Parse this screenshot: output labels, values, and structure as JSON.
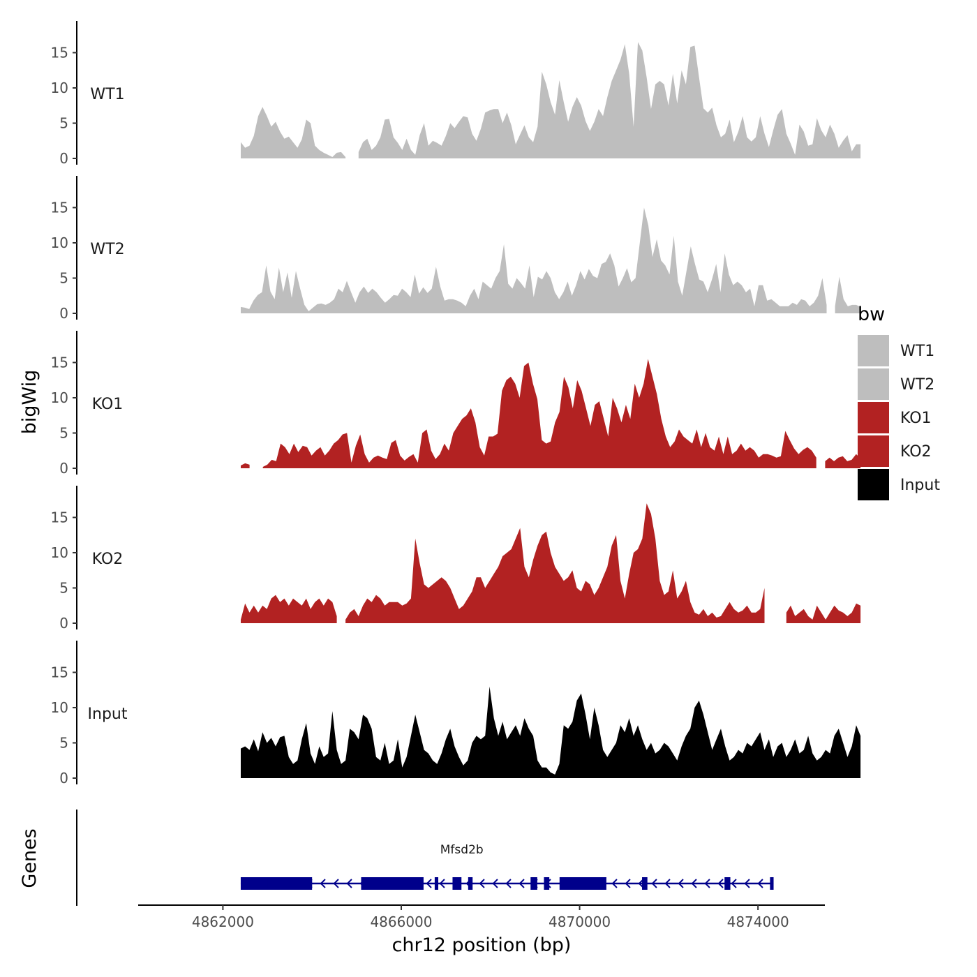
{
  "chart_data": {
    "type": "area",
    "region": {
      "chrom": "chr12",
      "start": 4862400,
      "end": 4876300
    },
    "ylabel": "bigWig",
    "genes_label": "Genes",
    "xlabel": "chr12 position (bp)",
    "x_ticks": [
      {
        "value": 4862000,
        "label": "4862000"
      },
      {
        "value": 4866000,
        "label": "4866000"
      },
      {
        "value": 4870000,
        "label": "4870000"
      },
      {
        "value": 4874000,
        "label": "4874000"
      }
    ],
    "y_ticks": [
      {
        "value": 0,
        "label": "0"
      },
      {
        "value": 5,
        "label": "5"
      },
      {
        "value": 10,
        "label": "10"
      },
      {
        "value": 15,
        "label": "15"
      }
    ],
    "ylim": [
      0,
      19.5
    ],
    "xlim": [
      4860100,
      4875500
    ],
    "legend": {
      "title": "bw",
      "items": [
        {
          "label": "WT1",
          "color": "#bebebe"
        },
        {
          "label": "WT2",
          "color": "#bebebe"
        },
        {
          "label": "KO1",
          "color": "#b22222"
        },
        {
          "label": "KO2",
          "color": "#b22222"
        },
        {
          "label": "Input",
          "color": "#000000"
        }
      ]
    },
    "series": [
      {
        "name": "WT1",
        "color": "#bebebe",
        "values": [
          2.3,
          1.5,
          1.8,
          3.2,
          6.0,
          7.3,
          6.0,
          4.5,
          5.2,
          3.8,
          2.8,
          3.1,
          2.3,
          1.5,
          2.7,
          5.5,
          5.0,
          1.8,
          1.2,
          0.8,
          0.5,
          0.2,
          0.8,
          0.9,
          0.2,
          0,
          0,
          0.9,
          2.3,
          2.8,
          1.2,
          1.8,
          3.0,
          5.5,
          5.6,
          3.0,
          2.2,
          1.2,
          2.8,
          1.2,
          0.5,
          3.3,
          5.0,
          1.8,
          2.5,
          2.2,
          1.8,
          3.2,
          5.0,
          4.3,
          5.2,
          6.0,
          5.8,
          3.5,
          2.5,
          4.2,
          6.5,
          6.8,
          7.0,
          7.0,
          5.0,
          6.5,
          4.7,
          2.0,
          3.4,
          4.7,
          3.0,
          2.3,
          4.5,
          12.3,
          10.5,
          8.0,
          6.2,
          11.1,
          8.0,
          5.2,
          7.3,
          8.7,
          7.5,
          5.3,
          3.9,
          5.2,
          7.0,
          6.0,
          8.7,
          11.0,
          12.5,
          14.0,
          16.2,
          12.0,
          4.5,
          16.5,
          15.3,
          11.5,
          7.0,
          10.5,
          11.0,
          10.5,
          7.5,
          12.0,
          7.8,
          12.5,
          10.5,
          15.8,
          16.0,
          11.5,
          7.1,
          6.5,
          7.2,
          4.7,
          3.0,
          3.5,
          5.5,
          2.3,
          3.8,
          6.0,
          3.0,
          2.4,
          3.0,
          6.0,
          3.5,
          1.6,
          4.0,
          6.2,
          7.0,
          3.5,
          2.1,
          0.5,
          4.8,
          3.8,
          1.8,
          2.0,
          5.7,
          4.0,
          3.0,
          4.8,
          3.5,
          1.5,
          2.5,
          3.3,
          1.0,
          2.0,
          2.0
        ]
      },
      {
        "name": "WT2",
        "color": "#bebebe",
        "values": [
          0.9,
          0.8,
          0.6,
          1.8,
          2.6,
          3.0,
          6.8,
          3.1,
          2.0,
          6.5,
          3.0,
          5.8,
          2.2,
          6.0,
          3.5,
          1.2,
          0.3,
          0.8,
          1.3,
          1.4,
          1.2,
          1.5,
          2.0,
          3.5,
          3.0,
          4.6,
          3.0,
          1.5,
          3.0,
          3.8,
          2.9,
          3.5,
          3.0,
          2.2,
          1.5,
          2.0,
          2.6,
          2.5,
          3.5,
          3.0,
          2.3,
          5.5,
          2.8,
          3.7,
          2.9,
          3.5,
          6.6,
          3.8,
          1.8,
          2.0,
          2.0,
          1.8,
          1.5,
          1.0,
          2.5,
          3.5,
          2.0,
          4.5,
          4.0,
          3.5,
          5.0,
          6.0,
          9.8,
          4.2,
          3.5,
          5.0,
          4.3,
          3.5,
          6.8,
          2.3,
          5.2,
          4.8,
          6.0,
          5.0,
          3.0,
          2.0,
          3.0,
          4.5,
          2.5,
          4.0,
          6.0,
          4.8,
          6.3,
          5.3,
          5.0,
          7.0,
          7.3,
          8.5,
          6.8,
          3.8,
          5.0,
          6.4,
          4.4,
          5.0,
          10.0,
          15.0,
          12.5,
          8.0,
          10.5,
          7.5,
          6.8,
          5.5,
          11.0,
          4.5,
          2.5,
          6.0,
          9.5,
          7.0,
          4.8,
          4.5,
          3.0,
          4.8,
          7.0,
          3.0,
          8.5,
          5.5,
          4.0,
          4.5,
          4.0,
          3.0,
          3.5,
          1.0,
          4.0,
          4.0,
          1.8,
          2.0,
          1.5,
          1.0,
          1.0,
          1.0,
          1.5,
          1.2,
          2.0,
          1.8,
          1.0,
          1.5,
          2.5,
          5.0,
          1.2,
          0,
          1.0,
          5.2,
          2.0,
          1.0,
          1.2,
          1.2,
          0.9
        ]
      },
      {
        "name": "KO1",
        "color": "#b22222",
        "values": [
          0.4,
          0.7,
          0.5,
          0,
          0,
          0.2,
          0.5,
          1.2,
          1.0,
          3.5,
          3.0,
          2.0,
          3.5,
          2.3,
          3.2,
          3.0,
          1.8,
          2.5,
          3.0,
          1.8,
          2.5,
          3.5,
          4.0,
          4.8,
          5.0,
          0.8,
          3.2,
          4.8,
          2.0,
          0.8,
          1.5,
          1.8,
          1.5,
          1.3,
          3.6,
          4.0,
          1.8,
          1.1,
          1.6,
          2.0,
          0.8,
          5.0,
          5.5,
          2.5,
          1.3,
          2.0,
          3.5,
          2.5,
          5.0,
          6.0,
          7.0,
          7.5,
          8.5,
          6.5,
          3.0,
          1.8,
          4.5,
          4.5,
          4.9,
          11.0,
          12.5,
          13.0,
          12.0,
          10.0,
          14.5,
          15.0,
          12.0,
          9.8,
          4.0,
          3.5,
          3.8,
          6.5,
          8.0,
          13.0,
          11.5,
          8.5,
          12.5,
          11.0,
          8.5,
          6.0,
          9.0,
          9.5,
          7.0,
          4.5,
          10.0,
          8.5,
          6.5,
          9.0,
          7.0,
          12.0,
          10.0,
          12.0,
          15.5,
          13.0,
          10.5,
          7.0,
          4.5,
          3.0,
          3.8,
          5.5,
          4.5,
          4.0,
          3.5,
          5.5,
          3.0,
          5.0,
          3.0,
          2.5,
          4.5,
          2.0,
          4.5,
          2.0,
          2.5,
          3.5,
          2.5,
          3.0,
          2.5,
          1.5,
          2.0,
          2.0,
          1.8,
          1.5,
          1.7,
          5.3,
          4.0,
          2.8,
          2.0,
          2.6,
          3.0,
          2.5,
          1.5,
          0,
          1.0,
          1.5,
          1.0,
          1.5,
          1.7,
          1.0,
          1.2,
          2.0,
          1.4
        ]
      },
      {
        "name": "KO2",
        "color": "#b22222",
        "values": [
          0.5,
          2.8,
          1.5,
          2.5,
          1.5,
          2.5,
          2.0,
          3.5,
          4.0,
          3.0,
          3.5,
          2.5,
          3.5,
          3.0,
          2.5,
          3.5,
          2.0,
          3.0,
          3.5,
          2.5,
          3.5,
          3.0,
          1.0,
          0,
          0.5,
          1.5,
          2.0,
          1.0,
          2.5,
          3.5,
          3.0,
          4.0,
          3.5,
          2.5,
          3.0,
          3.0,
          3.0,
          2.5,
          2.8,
          3.5,
          12.0,
          8.5,
          5.5,
          5.0,
          5.5,
          6.0,
          6.5,
          6.0,
          5.0,
          3.5,
          2.0,
          2.5,
          3.5,
          4.5,
          6.5,
          6.5,
          5.0,
          6.0,
          7.0,
          8.0,
          9.5,
          10.0,
          10.5,
          12.0,
          13.5,
          8.0,
          6.5,
          9.0,
          11.0,
          12.5,
          13.0,
          10.0,
          8.0,
          7.0,
          6.0,
          6.5,
          7.5,
          5.0,
          4.5,
          6.0,
          5.5,
          4.0,
          5.0,
          6.5,
          8.0,
          11.0,
          12.5,
          6.0,
          3.5,
          7.0,
          10.0,
          10.5,
          12.0,
          17.0,
          15.5,
          12.0,
          6.0,
          4.0,
          4.5,
          7.5,
          3.5,
          4.5,
          6.0,
          3.0,
          1.5,
          1.2,
          2.0,
          1.0,
          1.5,
          0.8,
          1.0,
          2.0,
          3.0,
          2.0,
          1.5,
          1.8,
          2.5,
          1.5,
          1.5,
          2.0,
          5.0,
          0,
          0,
          0,
          0,
          1.5,
          2.5,
          1.0,
          1.5,
          2.0,
          1.0,
          0.5,
          2.5,
          1.5,
          0.5,
          1.5,
          2.5,
          1.8,
          1.5,
          1.0,
          1.5,
          2.8,
          2.5
        ]
      },
      {
        "name": "Input",
        "color": "#000000",
        "values": [
          4.2,
          4.5,
          4.0,
          5.5,
          3.8,
          6.5,
          5.0,
          5.7,
          4.5,
          5.8,
          6.0,
          3.0,
          2.0,
          2.5,
          5.5,
          7.8,
          3.5,
          2.0,
          4.5,
          3.0,
          3.5,
          9.5,
          4.0,
          2.0,
          2.5,
          7.0,
          6.5,
          5.5,
          9.0,
          8.5,
          7.0,
          3.0,
          2.5,
          5.0,
          2.0,
          2.5,
          5.5,
          1.5,
          3.0,
          6.0,
          9.0,
          6.5,
          4.0,
          3.5,
          2.5,
          2.0,
          3.5,
          5.5,
          7.0,
          4.5,
          3.0,
          1.8,
          2.5,
          5.0,
          6.0,
          5.5,
          6.0,
          13.0,
          8.5,
          6.0,
          8.0,
          5.5,
          6.5,
          7.5,
          6.0,
          8.5,
          7.0,
          6.0,
          2.5,
          1.5,
          1.5,
          0.8,
          0.5,
          2.0,
          7.5,
          7.0,
          8.0,
          11.0,
          12.0,
          9.0,
          5.5,
          10.0,
          7.5,
          4.0,
          3.0,
          4.0,
          5.0,
          7.5,
          6.5,
          8.5,
          6.0,
          7.5,
          5.5,
          4.0,
          5.0,
          3.5,
          4.0,
          5.0,
          4.5,
          3.5,
          2.5,
          4.5,
          6.0,
          7.0,
          10.0,
          11.0,
          9.0,
          6.5,
          4.0,
          5.5,
          7.0,
          4.5,
          2.5,
          3.0,
          4.0,
          3.5,
          5.0,
          4.5,
          5.5,
          6.5,
          4.0,
          5.5,
          3.0,
          4.5,
          5.0,
          3.0,
          4.0,
          5.5,
          3.5,
          4.0,
          6.0,
          3.5,
          2.5,
          3.0,
          4.0,
          3.5,
          6.0,
          7.0,
          5.0,
          3.0,
          4.5,
          7.5,
          6.0
        ]
      }
    ],
    "genes": [
      {
        "name": "Mfsd2b",
        "strand": "-",
        "color": "#00008b",
        "start": 4862400,
        "end": 4874350,
        "exons": [
          {
            "start": 4862400,
            "end": 4864000
          },
          {
            "start": 4865100,
            "end": 4866500
          },
          {
            "start": 4866750,
            "end": 4866830
          },
          {
            "start": 4867150,
            "end": 4867350
          },
          {
            "start": 4867500,
            "end": 4867600
          },
          {
            "start": 4868900,
            "end": 4869050
          },
          {
            "start": 4869200,
            "end": 4869320
          },
          {
            "start": 4869550,
            "end": 4870600
          },
          {
            "start": 4871400,
            "end": 4871520
          },
          {
            "start": 4873250,
            "end": 4873380
          },
          {
            "start": 4874270,
            "end": 4874350
          }
        ],
        "thin_exons": [
          {
            "start": 4863000,
            "end": 4864000
          },
          {
            "start": 4865500,
            "end": 4866300
          }
        ]
      }
    ]
  }
}
